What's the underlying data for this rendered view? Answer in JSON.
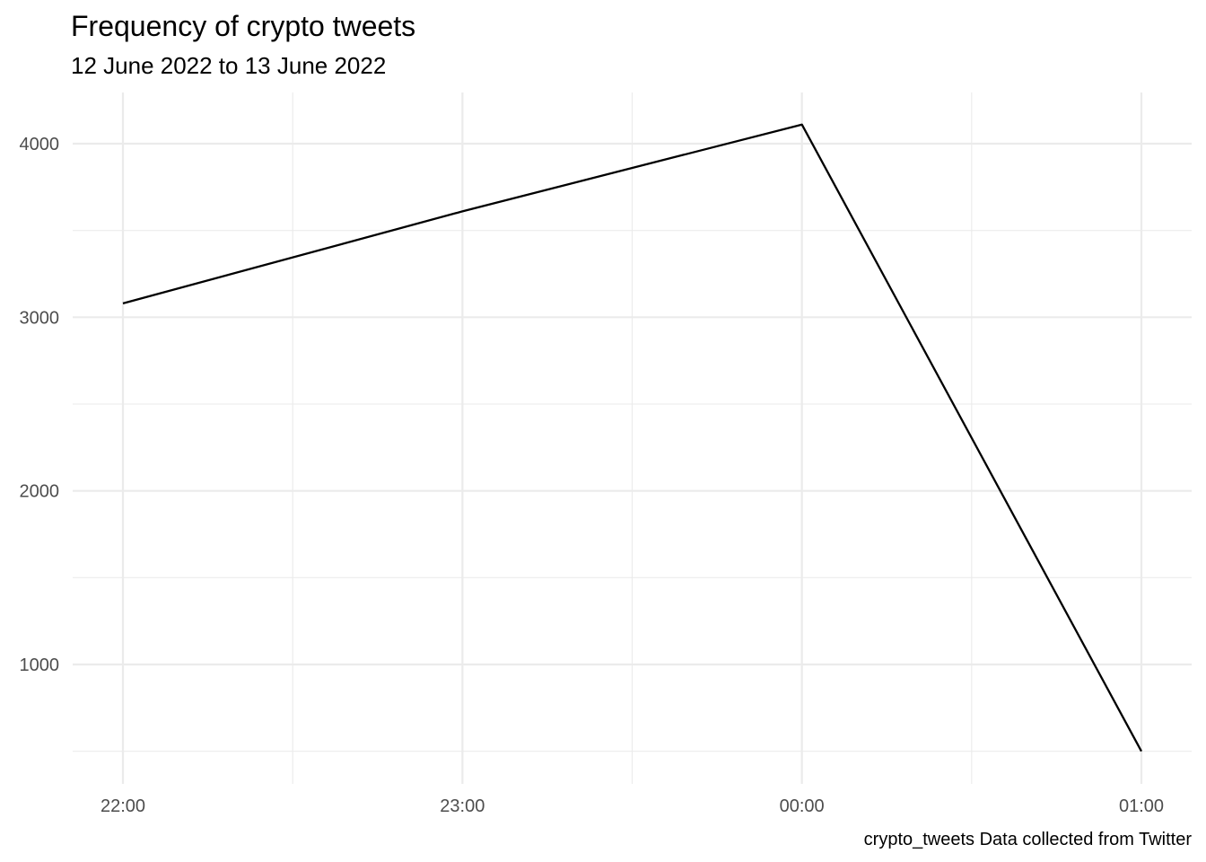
{
  "chart_data": {
    "type": "line",
    "title": "Frequency of crypto tweets",
    "subtitle": "12 June 2022 to 13 June 2022",
    "caption": "crypto_tweets Data collected from Twitter",
    "xlabel": "",
    "ylabel": "",
    "x": [
      "2022-06-12 22:00",
      "2022-06-12 23:00",
      "2022-06-13 00:00",
      "2022-06-13 01:00"
    ],
    "x_tick_labels": [
      "22:00",
      "23:00",
      "00:00",
      "01:00"
    ],
    "y_tick_labels": [
      "1000",
      "2000",
      "3000",
      "4000"
    ],
    "y_ticks": [
      1000,
      2000,
      3000,
      4000
    ],
    "ylim": [
      500,
      4110
    ],
    "series": [
      {
        "values": [
          3080,
          3610,
          4110,
          500
        ]
      }
    ],
    "grid": true,
    "legend": "none",
    "colors": {
      "line": "#000000",
      "grid": "#ebebeb",
      "tick_text": "#4d4d4d"
    }
  }
}
